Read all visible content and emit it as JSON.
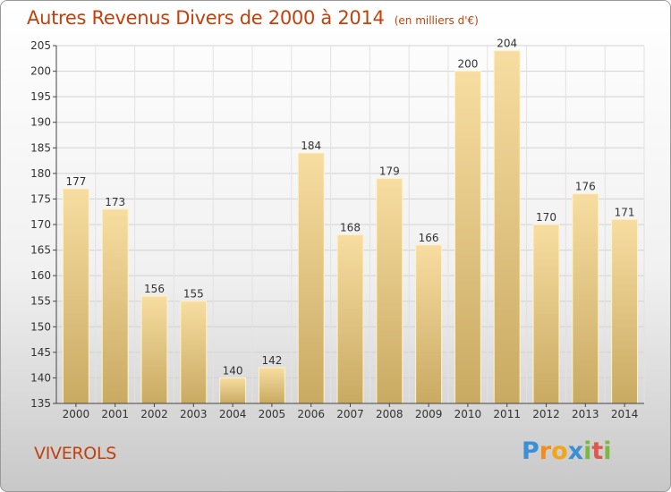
{
  "header": {
    "title": "Autres Revenus Divers de 2000 à 2014",
    "subtitle": "(en milliers d'€)"
  },
  "footer": {
    "place": "VIVEROLS",
    "logo": [
      "P",
      "r",
      "o",
      "x",
      "i",
      "t",
      "i"
    ],
    "logo_colors": [
      "#3b8fd6",
      "#f28c1c",
      "#f2a516",
      "#3b8fd6",
      "#7ab93e",
      "#e2574c",
      "#7ab93e"
    ]
  },
  "chart_data": {
    "type": "bar",
    "categories": [
      "2000",
      "2001",
      "2002",
      "2003",
      "2004",
      "2005",
      "2006",
      "2007",
      "2008",
      "2009",
      "2010",
      "2011",
      "2012",
      "2013",
      "2014"
    ],
    "values": [
      177,
      173,
      156,
      155,
      140,
      142,
      184,
      168,
      179,
      166,
      200,
      204,
      170,
      176,
      171
    ],
    "ylim": [
      135,
      205
    ],
    "yticks": [
      135,
      140,
      145,
      150,
      155,
      160,
      165,
      170,
      175,
      180,
      185,
      190,
      195,
      200,
      205
    ],
    "grid": true,
    "bar_color_top": "#f7dda1",
    "bar_color_bottom": "#c9aa62"
  }
}
